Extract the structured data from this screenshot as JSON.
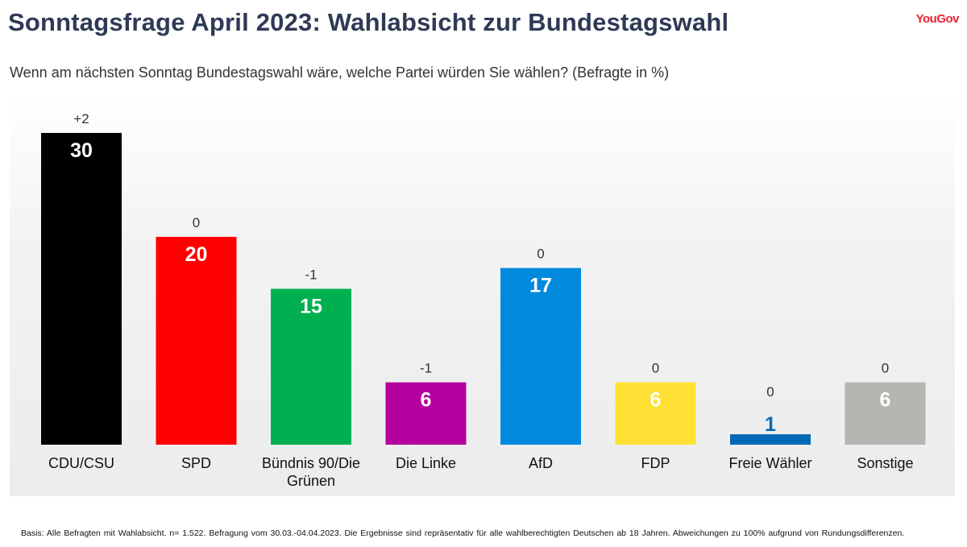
{
  "header": {
    "title": "Sonntagsfrage April 2023: Wahlabsicht zur Bundestagswahl",
    "subtitle": "Wenn am nächsten Sonntag Bundestagswahl wäre, welche Partei würden Sie wählen? (Befragte in %)",
    "logo": "YouGov"
  },
  "footnote": "Basis: Alle Befragten mit Wahlabsicht. n= 1.522. Befragung vom 30.03.-04.04.2023. Die Ergebnisse sind repräsentativ für alle wahlberechtigten Deutschen ab 18 Jahren. Abweichungen zu 100% aufgrund von Rundungsdifferenzen.",
  "colors": {
    "title": "#2e3a55",
    "logo": "#e8232e"
  },
  "chart_data": {
    "type": "bar",
    "categories": [
      "CDU/CSU",
      "SPD",
      "Bündnis 90/Die Grünen",
      "Die Linke",
      "AfD",
      "FDP",
      "Freie Wähler",
      "Sonstige"
    ],
    "values": [
      30,
      20,
      15,
      6,
      17,
      6,
      1,
      6
    ],
    "changes": [
      "+2",
      "0",
      "-1",
      "-1",
      "0",
      "0",
      "0",
      "0"
    ],
    "colors": [
      "#000000",
      "#ff0000",
      "#00b050",
      "#b4009e",
      "#0089dd",
      "#ffe135",
      "#0068b5",
      "#b4b6b2"
    ],
    "value_label_colors": [
      "#ffffff",
      "#ffffff",
      "#ffffff",
      "#ffffff",
      "#ffffff",
      "#ffffff",
      "#0068b5",
      "#ffffff"
    ],
    "ylim": [
      0,
      30
    ],
    "title": "",
    "xlabel": "",
    "ylabel": "",
    "grid": false,
    "legend": "none"
  }
}
